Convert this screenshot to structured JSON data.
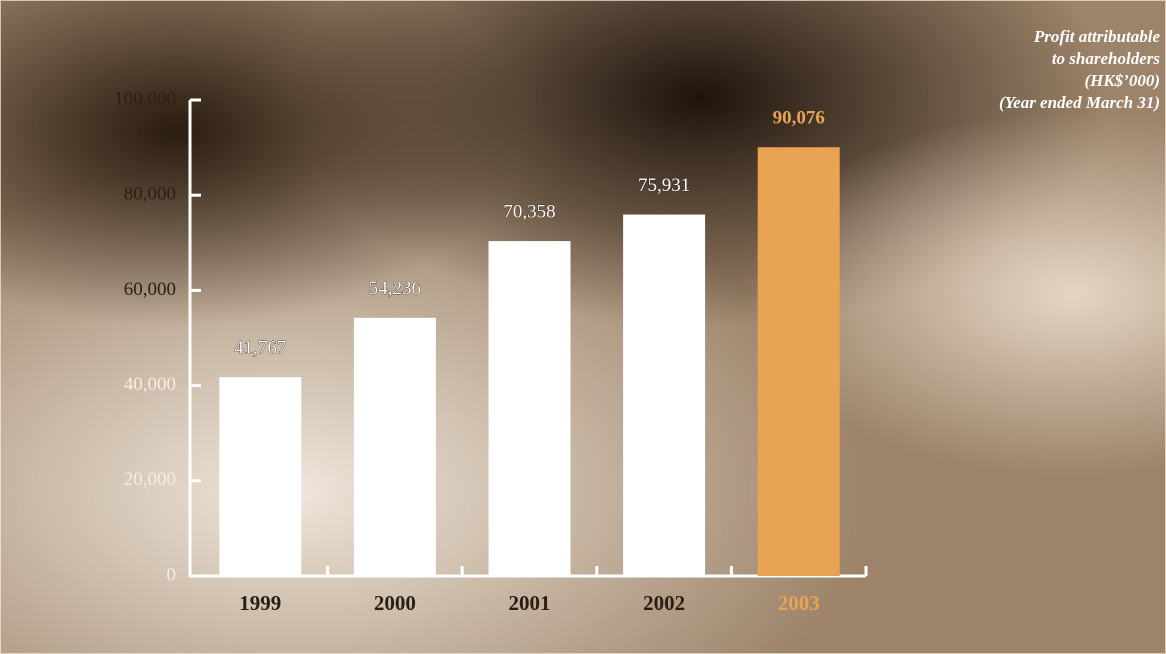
{
  "chart_data": {
    "type": "bar",
    "title": [
      "Profit attributable",
      "to shareholders",
      "(HK$’000)",
      "(Year ended March 31)"
    ],
    "categories": [
      "1999",
      "2000",
      "2001",
      "2002",
      "2003"
    ],
    "values": [
      41767,
      54236,
      70358,
      75931,
      90076
    ],
    "value_labels": [
      "41,767",
      "54,236",
      "70,358",
      "75,931",
      "90,076"
    ],
    "colors": [
      "#ffffff",
      "#ffffff",
      "#ffffff",
      "#ffffff",
      "#e8a452"
    ],
    "ylim": [
      0,
      100000
    ],
    "yticks": [
      0,
      {
        "value": 20000,
        "label": "20,000"
      },
      {
        "value": 40000,
        "label": "40,000"
      },
      {
        "value": 60000,
        "label": "60,000"
      },
      {
        "value": 80000,
        "label": "80,000"
      },
      {
        "value": 100000,
        "label": "100,000"
      }
    ],
    "grid": false
  }
}
